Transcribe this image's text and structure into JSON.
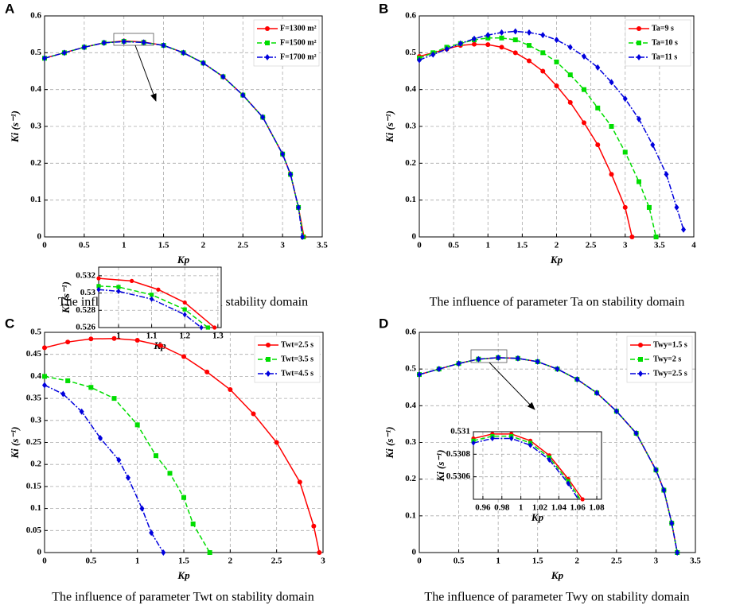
{
  "chart_data": [
    {
      "type": "line",
      "panel": "A",
      "caption": "The influence of parameter F on stability domain",
      "xlabel": "Kp",
      "ylabel": "Ki (s⁻¹)",
      "xlim": [
        0,
        3.5
      ],
      "ylim": [
        0,
        0.6
      ],
      "xticks": [
        0,
        0.5,
        1,
        1.5,
        2,
        2.5,
        3,
        3.5
      ],
      "yticks": [
        0,
        0.1,
        0.2,
        0.3,
        0.4,
        0.5,
        0.6
      ],
      "grid": true,
      "legend": "upper right",
      "series": [
        {
          "name": "F=1300 m²",
          "color": "#ff0000",
          "linestyle": "solid",
          "marker": "circle",
          "x": [
            0,
            0.25,
            0.5,
            0.75,
            1.0,
            1.25,
            1.5,
            1.75,
            2.0,
            2.25,
            2.5,
            2.75,
            3.0,
            3.1,
            3.2,
            3.27
          ],
          "values": [
            0.485,
            0.5,
            0.515,
            0.527,
            0.532,
            0.529,
            0.52,
            0.5,
            0.472,
            0.435,
            0.385,
            0.325,
            0.225,
            0.17,
            0.08,
            0
          ]
        },
        {
          "name": "F=1500 m²",
          "color": "#00dd00",
          "linestyle": "dashed",
          "marker": "square",
          "x": [
            0,
            0.25,
            0.5,
            0.75,
            1.0,
            1.25,
            1.5,
            1.75,
            2.0,
            2.25,
            2.5,
            2.75,
            3.0,
            3.1,
            3.2,
            3.26
          ],
          "values": [
            0.485,
            0.5,
            0.515,
            0.527,
            0.531,
            0.528,
            0.52,
            0.5,
            0.472,
            0.435,
            0.385,
            0.325,
            0.225,
            0.17,
            0.08,
            0
          ]
        },
        {
          "name": "F=1700 m²",
          "color": "#0000dd",
          "linestyle": "dashdot",
          "marker": "diamond",
          "x": [
            0,
            0.25,
            0.5,
            0.75,
            1.0,
            1.25,
            1.5,
            1.75,
            2.0,
            2.25,
            2.5,
            2.75,
            3.0,
            3.1,
            3.2,
            3.25
          ],
          "values": [
            0.485,
            0.5,
            0.515,
            0.527,
            0.53,
            0.528,
            0.52,
            0.5,
            0.472,
            0.435,
            0.385,
            0.325,
            0.225,
            0.17,
            0.08,
            0
          ]
        }
      ],
      "inset": {
        "xlabel": "Kp",
        "ylabel": "Ki (s⁻¹)",
        "xlim": [
          0.94,
          1.31
        ],
        "ylim": [
          0.526,
          0.533
        ],
        "xticks": [
          1,
          1.1,
          1.2,
          1.3
        ],
        "yticks": [
          0.526,
          0.528,
          0.53,
          0.532
        ],
        "grid": true,
        "series": [
          {
            "color": "#ff0000",
            "linestyle": "solid",
            "marker": "circle",
            "x": [
              0.94,
              1.04,
              1.12,
              1.2,
              1.29
            ],
            "values": [
              0.5317,
              0.5314,
              0.5304,
              0.5289,
              0.526
            ]
          },
          {
            "color": "#00dd00",
            "linestyle": "dashed",
            "marker": "square",
            "x": [
              0.94,
              1.0,
              1.1,
              1.2,
              1.27
            ],
            "values": [
              0.5308,
              0.5307,
              0.5298,
              0.5281,
              0.526
            ]
          },
          {
            "color": "#0000dd",
            "linestyle": "dashdot",
            "marker": "diamond",
            "x": [
              0.94,
              1.0,
              1.1,
              1.2,
              1.25
            ],
            "values": [
              0.5304,
              0.5302,
              0.5293,
              0.5275,
              0.526
            ]
          }
        ]
      }
    },
    {
      "type": "line",
      "panel": "B",
      "caption": "The influence of parameter Ta on stability domain",
      "xlabel": "Kp",
      "ylabel": "Ki (s⁻¹)",
      "xlim": [
        0,
        4
      ],
      "ylim": [
        0,
        0.6
      ],
      "xticks": [
        0,
        0.5,
        1,
        1.5,
        2,
        2.5,
        3,
        3.5,
        4
      ],
      "yticks": [
        0,
        0.1,
        0.2,
        0.3,
        0.4,
        0.5,
        0.6
      ],
      "grid": true,
      "legend": "upper right",
      "series": [
        {
          "name": "Ta=9 s",
          "color": "#ff0000",
          "linestyle": "solid",
          "marker": "circle",
          "x": [
            0,
            0.2,
            0.4,
            0.6,
            0.8,
            1.0,
            1.2,
            1.4,
            1.6,
            1.8,
            2.0,
            2.2,
            2.4,
            2.6,
            2.8,
            3.0,
            3.1
          ],
          "values": [
            0.49,
            0.5,
            0.51,
            0.52,
            0.523,
            0.522,
            0.515,
            0.5,
            0.478,
            0.45,
            0.41,
            0.365,
            0.31,
            0.25,
            0.17,
            0.08,
            0
          ]
        },
        {
          "name": "Ta=10 s",
          "color": "#00dd00",
          "linestyle": "dashed",
          "marker": "square",
          "x": [
            0,
            0.2,
            0.4,
            0.6,
            0.8,
            1.0,
            1.2,
            1.4,
            1.6,
            1.8,
            2.0,
            2.2,
            2.4,
            2.6,
            2.8,
            3.0,
            3.2,
            3.35,
            3.45
          ],
          "values": [
            0.485,
            0.5,
            0.515,
            0.525,
            0.535,
            0.54,
            0.54,
            0.535,
            0.52,
            0.5,
            0.475,
            0.44,
            0.4,
            0.35,
            0.3,
            0.23,
            0.15,
            0.08,
            0
          ]
        },
        {
          "name": "Ta=11 s",
          "color": "#0000dd",
          "linestyle": "dashdot",
          "marker": "diamond",
          "x": [
            0,
            0.2,
            0.4,
            0.6,
            0.8,
            1.0,
            1.2,
            1.4,
            1.6,
            1.8,
            2.0,
            2.2,
            2.4,
            2.6,
            2.8,
            3.0,
            3.2,
            3.4,
            3.6,
            3.75,
            3.85
          ],
          "values": [
            0.48,
            0.495,
            0.51,
            0.525,
            0.538,
            0.548,
            0.555,
            0.558,
            0.555,
            0.548,
            0.535,
            0.515,
            0.49,
            0.46,
            0.42,
            0.375,
            0.32,
            0.25,
            0.17,
            0.08,
            0.02
          ]
        }
      ]
    },
    {
      "type": "line",
      "panel": "C",
      "caption": "The influence of parameter Twt on stability domain",
      "xlabel": "Kp",
      "ylabel": "Ki (s⁻¹)",
      "xlim": [
        0,
        3
      ],
      "ylim": [
        0,
        0.5
      ],
      "xticks": [
        0,
        0.5,
        1,
        1.5,
        2,
        2.5,
        3
      ],
      "yticks": [
        0,
        0.05,
        0.1,
        0.15,
        0.2,
        0.25,
        0.3,
        0.35,
        0.4,
        0.45,
        0.5
      ],
      "grid": true,
      "legend": "upper right",
      "series": [
        {
          "name": "Twt=2.5 s",
          "color": "#ff0000",
          "linestyle": "solid",
          "marker": "circle",
          "x": [
            0,
            0.25,
            0.5,
            0.75,
            1.0,
            1.25,
            1.5,
            1.75,
            2.0,
            2.25,
            2.5,
            2.75,
            2.9,
            2.96
          ],
          "values": [
            0.465,
            0.478,
            0.485,
            0.486,
            0.482,
            0.47,
            0.445,
            0.41,
            0.37,
            0.315,
            0.25,
            0.16,
            0.06,
            0
          ]
        },
        {
          "name": "Twt=3.5 s",
          "color": "#00dd00",
          "linestyle": "dashed",
          "marker": "square",
          "x": [
            0,
            0.25,
            0.5,
            0.75,
            1.0,
            1.2,
            1.35,
            1.5,
            1.6,
            1.78
          ],
          "values": [
            0.4,
            0.39,
            0.375,
            0.35,
            0.29,
            0.22,
            0.18,
            0.125,
            0.065,
            0
          ]
        },
        {
          "name": "Twt=4.5 s",
          "color": "#0000dd",
          "linestyle": "dashdot",
          "marker": "diamond",
          "x": [
            0,
            0.2,
            0.4,
            0.6,
            0.8,
            0.9,
            1.05,
            1.15,
            1.28
          ],
          "values": [
            0.38,
            0.36,
            0.32,
            0.26,
            0.21,
            0.17,
            0.1,
            0.045,
            0
          ]
        }
      ]
    },
    {
      "type": "line",
      "panel": "D",
      "caption": "The influence of parameter Twy on stability domain",
      "xlabel": "Kp",
      "ylabel": "Ki (s⁻¹)",
      "xlim": [
        0,
        3.5
      ],
      "ylim": [
        0,
        0.6
      ],
      "xticks": [
        0,
        0.5,
        1,
        1.5,
        2,
        2.5,
        3,
        3.5
      ],
      "yticks": [
        0,
        0.1,
        0.2,
        0.3,
        0.4,
        0.5,
        0.6
      ],
      "grid": true,
      "legend": "upper right",
      "series": [
        {
          "name": "Twy=1.5 s",
          "color": "#ff0000",
          "linestyle": "solid",
          "marker": "circle",
          "x": [
            0,
            0.25,
            0.5,
            0.75,
            1.0,
            1.25,
            1.5,
            1.75,
            2.0,
            2.25,
            2.5,
            2.75,
            3.0,
            3.1,
            3.2,
            3.27
          ],
          "values": [
            0.485,
            0.5,
            0.515,
            0.527,
            0.531,
            0.529,
            0.52,
            0.5,
            0.472,
            0.435,
            0.385,
            0.325,
            0.225,
            0.17,
            0.08,
            0
          ]
        },
        {
          "name": "Twy=2 s",
          "color": "#00dd00",
          "linestyle": "dashed",
          "marker": "square",
          "x": [
            0,
            0.25,
            0.5,
            0.75,
            1.0,
            1.25,
            1.5,
            1.75,
            2.0,
            2.25,
            2.5,
            2.75,
            3.0,
            3.1,
            3.2,
            3.27
          ],
          "values": [
            0.485,
            0.5,
            0.515,
            0.527,
            0.531,
            0.529,
            0.52,
            0.5,
            0.472,
            0.435,
            0.385,
            0.325,
            0.225,
            0.17,
            0.08,
            0
          ]
        },
        {
          "name": "Twy=2.5 s",
          "color": "#0000dd",
          "linestyle": "dashdot",
          "marker": "diamond",
          "x": [
            0,
            0.25,
            0.5,
            0.75,
            1.0,
            1.25,
            1.5,
            1.75,
            2.0,
            2.25,
            2.5,
            2.75,
            3.0,
            3.1,
            3.2,
            3.27
          ],
          "values": [
            0.485,
            0.5,
            0.515,
            0.527,
            0.531,
            0.529,
            0.52,
            0.5,
            0.472,
            0.435,
            0.385,
            0.325,
            0.225,
            0.17,
            0.08,
            0
          ]
        }
      ],
      "inset": {
        "xlabel": "Kp",
        "ylabel": "Ki (s⁻¹)",
        "xlim": [
          0.95,
          1.085
        ],
        "ylim": [
          0.5304,
          0.531
        ],
        "xticks": [
          0.96,
          0.98,
          1,
          1.02,
          1.04,
          1.06,
          1.08
        ],
        "yticks": [
          0.5306,
          0.5308,
          0.531
        ],
        "grid": true,
        "series": [
          {
            "color": "#ff0000",
            "linestyle": "solid",
            "marker": "circle",
            "x": [
              0.95,
              0.97,
              0.99,
              1.01,
              1.03,
              1.05,
              1.065,
              1.078
            ],
            "values": [
              0.53094,
              0.53098,
              0.53098,
              0.53092,
              0.53079,
              0.53058,
              0.5304,
              0.5302
            ]
          },
          {
            "color": "#00dd00",
            "linestyle": "dashed",
            "marker": "square",
            "x": [
              0.95,
              0.97,
              0.99,
              1.01,
              1.03,
              1.05,
              1.065,
              1.076
            ],
            "values": [
              0.53092,
              0.53096,
              0.53096,
              0.5309,
              0.53077,
              0.53056,
              0.53037,
              0.5302
            ]
          },
          {
            "color": "#0000dd",
            "linestyle": "dashdot",
            "marker": "diamond",
            "x": [
              0.95,
              0.97,
              0.99,
              1.01,
              1.03,
              1.05,
              1.065,
              1.074
            ],
            "values": [
              0.5309,
              0.53094,
              0.53094,
              0.53088,
              0.53075,
              0.53054,
              0.53034,
              0.5302
            ]
          }
        ]
      }
    }
  ]
}
